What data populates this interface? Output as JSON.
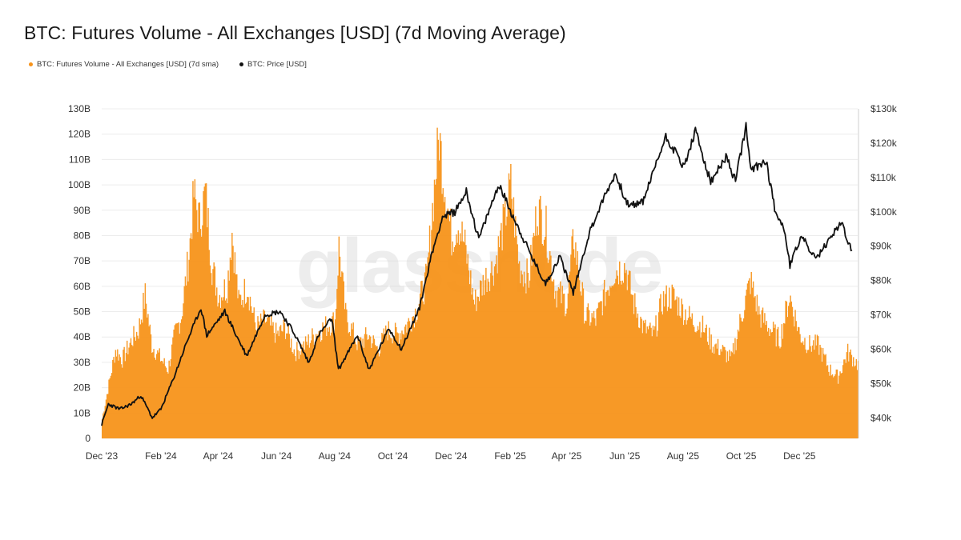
{
  "title": "BTC: Futures Volume - All Exchanges [USD] (7d Moving Average)",
  "legend": {
    "volume_label": "BTC: Futures Volume - All Exchanges [USD] (7d sma)",
    "price_label": "BTC: Price [USD]"
  },
  "watermark": "glassnode",
  "colors": {
    "volume": "#f7931a",
    "price": "#111111",
    "grid": "#ececec"
  },
  "chart_data": {
    "type": "bar",
    "series": [
      {
        "name": "BTC: Futures Volume - All Exchanges [USD] (7d sma)",
        "type": "bar",
        "axis": "left",
        "unit": "B USD",
        "points": [
          [
            "2023-12-01",
            8
          ],
          [
            "2023-12-08",
            22
          ],
          [
            "2023-12-15",
            36
          ],
          [
            "2023-12-22",
            32
          ],
          [
            "2024-01-01",
            40
          ],
          [
            "2024-01-08",
            44
          ],
          [
            "2024-01-15",
            58
          ],
          [
            "2024-01-22",
            38
          ],
          [
            "2024-02-01",
            32
          ],
          [
            "2024-02-08",
            28
          ],
          [
            "2024-02-15",
            42
          ],
          [
            "2024-02-22",
            50
          ],
          [
            "2024-03-01",
            75
          ],
          [
            "2024-03-06",
            99
          ],
          [
            "2024-03-12",
            88
          ],
          [
            "2024-03-18",
            100
          ],
          [
            "2024-03-25",
            70
          ],
          [
            "2024-04-01",
            58
          ],
          [
            "2024-04-10",
            62
          ],
          [
            "2024-04-15",
            84
          ],
          [
            "2024-04-22",
            55
          ],
          [
            "2024-05-01",
            62
          ],
          [
            "2024-05-10",
            45
          ],
          [
            "2024-05-20",
            48
          ],
          [
            "2024-06-01",
            42
          ],
          [
            "2024-06-10",
            45
          ],
          [
            "2024-06-20",
            35
          ],
          [
            "2024-07-01",
            38
          ],
          [
            "2024-07-10",
            42
          ],
          [
            "2024-07-20",
            45
          ],
          [
            "2024-08-01",
            48
          ],
          [
            "2024-08-05",
            78
          ],
          [
            "2024-08-12",
            50
          ],
          [
            "2024-08-25",
            38
          ],
          [
            "2024-09-05",
            42
          ],
          [
            "2024-09-15",
            36
          ],
          [
            "2024-09-25",
            44
          ],
          [
            "2024-10-05",
            42
          ],
          [
            "2024-10-15",
            46
          ],
          [
            "2024-10-25",
            52
          ],
          [
            "2024-11-05",
            65
          ],
          [
            "2024-11-12",
            98
          ],
          [
            "2024-11-18",
            123
          ],
          [
            "2024-11-22",
            108
          ],
          [
            "2024-12-01",
            82
          ],
          [
            "2024-12-08",
            88
          ],
          [
            "2024-12-15",
            78
          ],
          [
            "2024-12-25",
            55
          ],
          [
            "2025-01-05",
            65
          ],
          [
            "2025-01-15",
            70
          ],
          [
            "2025-01-25",
            88
          ],
          [
            "2025-02-01",
            103
          ],
          [
            "2025-02-10",
            70
          ],
          [
            "2025-02-20",
            65
          ],
          [
            "2025-03-01",
            94
          ],
          [
            "2025-03-10",
            85
          ],
          [
            "2025-03-20",
            60
          ],
          [
            "2025-04-01",
            55
          ],
          [
            "2025-04-08",
            82
          ],
          [
            "2025-04-20",
            50
          ],
          [
            "2025-05-01",
            48
          ],
          [
            "2025-05-10",
            58
          ],
          [
            "2025-05-20",
            68
          ],
          [
            "2025-06-01",
            70
          ],
          [
            "2025-06-10",
            55
          ],
          [
            "2025-06-20",
            45
          ],
          [
            "2025-07-01",
            42
          ],
          [
            "2025-07-10",
            56
          ],
          [
            "2025-07-20",
            58
          ],
          [
            "2025-08-01",
            52
          ],
          [
            "2025-08-10",
            48
          ],
          [
            "2025-08-20",
            46
          ],
          [
            "2025-09-01",
            38
          ],
          [
            "2025-09-10",
            36
          ],
          [
            "2025-09-20",
            32
          ],
          [
            "2025-10-01",
            50
          ],
          [
            "2025-10-10",
            64
          ],
          [
            "2025-10-20",
            50
          ],
          [
            "2025-11-01",
            44
          ],
          [
            "2025-11-10",
            40
          ],
          [
            "2025-11-20",
            58
          ],
          [
            "2025-12-01",
            42
          ],
          [
            "2025-12-10",
            38
          ],
          [
            "2025-12-20",
            38
          ],
          [
            "2026-01-01",
            28
          ],
          [
            "2026-01-10",
            25
          ],
          [
            "2026-01-20",
            35
          ],
          [
            "2026-01-31",
            30
          ]
        ]
      },
      {
        "name": "BTC: Price [USD]",
        "type": "line",
        "axis": "right",
        "unit": "USD",
        "points": [
          [
            "2023-12-01",
            38000
          ],
          [
            "2023-12-08",
            44000
          ],
          [
            "2023-12-20",
            42500
          ],
          [
            "2024-01-01",
            44000
          ],
          [
            "2024-01-11",
            46500
          ],
          [
            "2024-01-23",
            40000
          ],
          [
            "2024-02-01",
            42500
          ],
          [
            "2024-02-15",
            52000
          ],
          [
            "2024-02-28",
            62000
          ],
          [
            "2024-03-14",
            72000
          ],
          [
            "2024-03-20",
            64000
          ],
          [
            "2024-04-08",
            71000
          ],
          [
            "2024-04-20",
            64000
          ],
          [
            "2024-05-01",
            58000
          ],
          [
            "2024-05-20",
            70000
          ],
          [
            "2024-06-05",
            71000
          ],
          [
            "2024-06-20",
            64500
          ],
          [
            "2024-07-05",
            56000
          ],
          [
            "2024-07-15",
            64000
          ],
          [
            "2024-07-29",
            69000
          ],
          [
            "2024-08-05",
            54000
          ],
          [
            "2024-08-25",
            64000
          ],
          [
            "2024-09-06",
            54000
          ],
          [
            "2024-09-27",
            66000
          ],
          [
            "2024-10-10",
            60000
          ],
          [
            "2024-10-29",
            72000
          ],
          [
            "2024-11-11",
            88000
          ],
          [
            "2024-11-22",
            98500
          ],
          [
            "2024-12-05",
            100000
          ],
          [
            "2024-12-17",
            106000
          ],
          [
            "2024-12-30",
            92000
          ],
          [
            "2025-01-20",
            108000
          ],
          [
            "2025-02-05",
            98000
          ],
          [
            "2025-02-25",
            86000
          ],
          [
            "2025-03-10",
            79000
          ],
          [
            "2025-03-25",
            87000
          ],
          [
            "2025-04-08",
            76500
          ],
          [
            "2025-04-25",
            94000
          ],
          [
            "2025-05-10",
            104000
          ],
          [
            "2025-05-22",
            111000
          ],
          [
            "2025-06-05",
            101500
          ],
          [
            "2025-06-20",
            103000
          ],
          [
            "2025-07-14",
            122000
          ],
          [
            "2025-07-25",
            117000
          ],
          [
            "2025-08-02",
            113000
          ],
          [
            "2025-08-14",
            123500
          ],
          [
            "2025-08-30",
            108500
          ],
          [
            "2025-09-15",
            116000
          ],
          [
            "2025-09-25",
            109000
          ],
          [
            "2025-10-06",
            125000
          ],
          [
            "2025-10-11",
            112000
          ],
          [
            "2025-10-27",
            115000
          ],
          [
            "2025-11-05",
            101000
          ],
          [
            "2025-11-15",
            95000
          ],
          [
            "2025-11-21",
            84500
          ],
          [
            "2025-12-03",
            93000
          ],
          [
            "2025-12-18",
            86000
          ],
          [
            "2026-01-05",
            93500
          ],
          [
            "2026-01-14",
            97000
          ],
          [
            "2026-01-25",
            88000
          ]
        ]
      }
    ],
    "y_left": {
      "ylim": [
        0,
        130
      ],
      "ticks": [
        "0",
        "10B",
        "20B",
        "30B",
        "40B",
        "50B",
        "60B",
        "70B",
        "80B",
        "90B",
        "100B",
        "110B",
        "120B",
        "130B"
      ]
    },
    "y_right": {
      "ylim": [
        34000,
        130000
      ],
      "ticks": [
        "$40k",
        "$50k",
        "$60k",
        "$70k",
        "$80k",
        "$90k",
        "$100k",
        "$110k",
        "$120k",
        "$130k"
      ]
    },
    "x": {
      "range": [
        "2023-12-01",
        "2026-01-31"
      ],
      "ticks": [
        [
          "2023-12-01",
          "Dec '23"
        ],
        [
          "2024-02-01",
          "Feb '24"
        ],
        [
          "2024-04-01",
          "Apr '24"
        ],
        [
          "2024-06-01",
          "Jun '24"
        ],
        [
          "2024-08-01",
          "Aug '24"
        ],
        [
          "2024-10-01",
          "Oct '24"
        ],
        [
          "2024-12-01",
          "Dec '24"
        ],
        [
          "2025-02-01",
          "Feb '25"
        ],
        [
          "2025-04-01",
          "Apr '25"
        ],
        [
          "2025-06-01",
          "Jun '25"
        ],
        [
          "2025-08-01",
          "Aug '25"
        ],
        [
          "2025-10-01",
          "Oct '25"
        ],
        [
          "2025-12-01",
          "Dec '25"
        ]
      ]
    },
    "grid": true,
    "legend_position": "top-left"
  }
}
